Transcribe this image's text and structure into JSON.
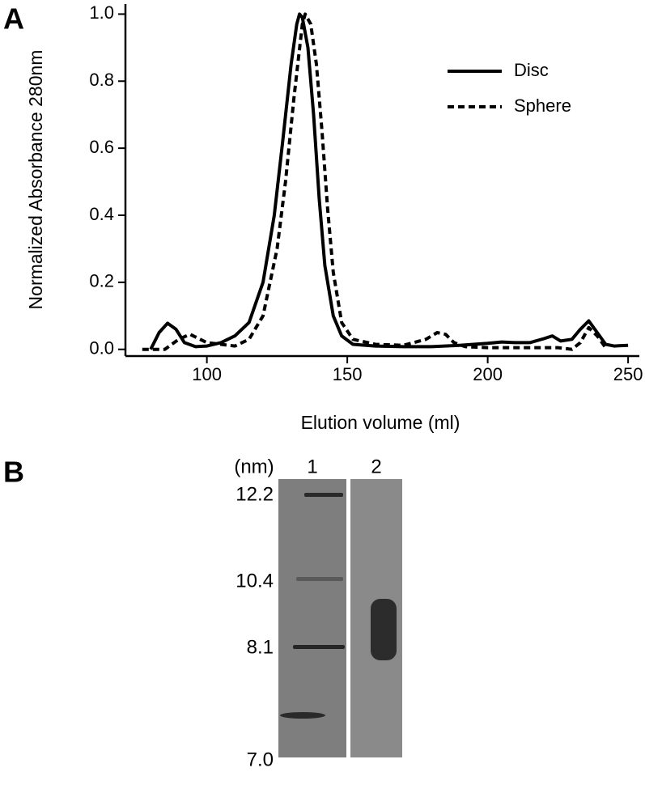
{
  "panels": {
    "a": "A",
    "b": "B"
  },
  "chart_data": {
    "type": "line",
    "xlabel": "Elution volume (ml)",
    "ylabel": "Normalized Absorbance 280nm",
    "xlim": [
      71,
      254
    ],
    "ylim": [
      -0.02,
      1.03
    ],
    "xticks": [
      100,
      150,
      200,
      250
    ],
    "yticks": [
      {
        "value": 0,
        "label": "0.0"
      },
      0.2,
      0.4,
      0.6,
      0.8,
      {
        "value": 1,
        "label": "1.0"
      }
    ],
    "legend": "upper right",
    "series": [
      {
        "name": "Disc",
        "color": "#000000",
        "style": "solid",
        "x": [
          80,
          83,
          86,
          89,
          92,
          96,
          100,
          105,
          110,
          115,
          120,
          124,
          127,
          130,
          132,
          133,
          134,
          136,
          138,
          140,
          142,
          145,
          148,
          152,
          160,
          170,
          180,
          190,
          200,
          205,
          210,
          215,
          220,
          223,
          226,
          230,
          233,
          236,
          239,
          242,
          245,
          250
        ],
        "values": [
          0,
          0.05,
          0.078,
          0.06,
          0.02,
          0.008,
          0.01,
          0.02,
          0.04,
          0.08,
          0.2,
          0.4,
          0.62,
          0.85,
          0.97,
          1.0,
          0.99,
          0.9,
          0.7,
          0.45,
          0.25,
          0.1,
          0.04,
          0.015,
          0.01,
          0.008,
          0.008,
          0.012,
          0.018,
          0.022,
          0.02,
          0.02,
          0.032,
          0.04,
          0.025,
          0.03,
          0.06,
          0.085,
          0.05,
          0.015,
          0.01,
          0.012
        ]
      },
      {
        "name": "Sphere",
        "color": "#000000",
        "style": "dashed",
        "x": [
          77,
          85,
          90,
          94,
          100,
          110,
          115,
          120,
          125,
          128,
          131,
          134,
          135,
          137,
          139,
          141,
          143,
          145,
          148,
          152,
          160,
          170,
          178,
          182,
          185,
          188,
          192,
          200,
          210,
          220,
          225,
          230,
          233,
          236,
          239,
          242
        ],
        "values": [
          0,
          0,
          0.03,
          0.045,
          0.02,
          0.01,
          0.03,
          0.1,
          0.3,
          0.5,
          0.75,
          0.97,
          1.0,
          0.97,
          0.85,
          0.65,
          0.42,
          0.23,
          0.08,
          0.03,
          0.015,
          0.012,
          0.03,
          0.05,
          0.045,
          0.02,
          0.008,
          0.005,
          0.005,
          0.005,
          0.005,
          0,
          0.02,
          0.065,
          0.04,
          0.005
        ]
      }
    ]
  },
  "gel": {
    "unit_label": "(nm)",
    "lanes": [
      "1",
      "2"
    ],
    "markers": [
      "12.2",
      "10.4",
      "8.1",
      "7.0"
    ]
  }
}
